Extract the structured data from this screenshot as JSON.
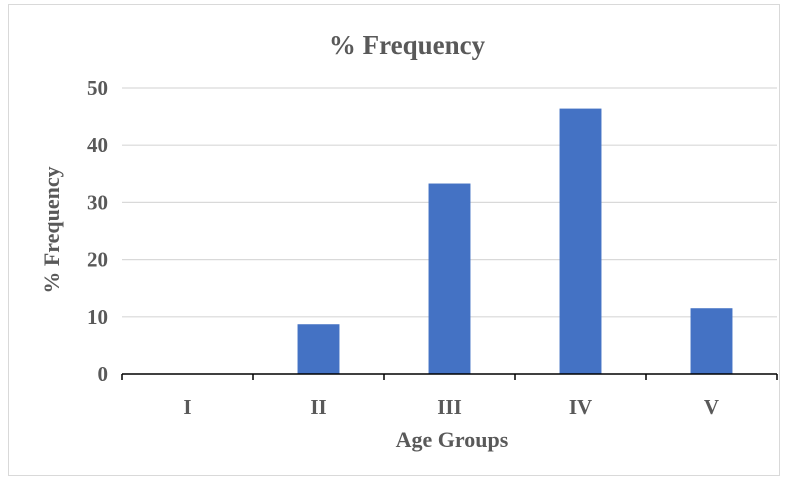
{
  "chart_data": {
    "type": "bar",
    "title": "% Frequency",
    "xlabel": "Age Groups",
    "ylabel": "% Frequency",
    "categories": [
      "I",
      "II",
      "III",
      "IV",
      "V"
    ],
    "values": [
      0,
      8.7,
      33.3,
      46.4,
      11.5
    ],
    "ylim": [
      0,
      50
    ],
    "yticks": [
      "0",
      "10",
      "20",
      "30",
      "40",
      "50"
    ],
    "grid": true,
    "legend": "none",
    "bar_color": "#4472C4",
    "grid_color": "#d9d9d9",
    "axis_color": "#000000"
  }
}
